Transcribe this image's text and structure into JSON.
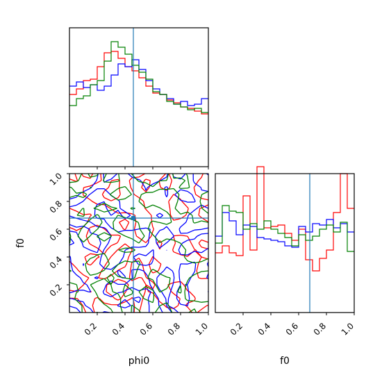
{
  "chart_data": [
    {
      "type": "histogram",
      "panel": "phi0 marginal",
      "x_range": [
        0,
        1
      ],
      "truth": 0.46,
      "bin_edges": [
        0,
        0.05,
        0.1,
        0.15,
        0.2,
        0.25,
        0.3,
        0.35,
        0.4,
        0.45,
        0.5,
        0.55,
        0.6,
        0.65,
        0.7,
        0.75,
        0.8,
        0.85,
        0.9,
        0.95,
        1.0
      ],
      "series": [
        {
          "color": "#ff0000",
          "values": [
            0.52,
            0.56,
            0.62,
            0.63,
            0.72,
            0.82,
            0.83,
            0.78,
            0.72,
            0.69,
            0.64,
            0.58,
            0.53,
            0.52,
            0.48,
            0.46,
            0.43,
            0.42,
            0.4,
            0.38
          ]
        },
        {
          "color": "#0000ff",
          "values": [
            0.58,
            0.61,
            0.57,
            0.59,
            0.55,
            0.58,
            0.66,
            0.74,
            0.72,
            0.77,
            0.7,
            0.62,
            0.56,
            0.52,
            0.49,
            0.45,
            0.47,
            0.44,
            0.45,
            0.49
          ]
        },
        {
          "color": "#008000",
          "values": [
            0.44,
            0.49,
            0.51,
            0.59,
            0.62,
            0.76,
            0.9,
            0.86,
            0.81,
            0.73,
            0.68,
            0.63,
            0.54,
            0.52,
            0.47,
            0.45,
            0.43,
            0.41,
            0.42,
            0.39
          ]
        }
      ]
    },
    {
      "type": "contour",
      "panel": "phi0 vs f0",
      "xlabel": "phi0",
      "ylabel": "f0",
      "x_range": [
        0,
        1
      ],
      "y_range": [
        0,
        1
      ],
      "truth": [
        0.46,
        0.68
      ],
      "xticks": [
        "0.2",
        "0.4",
        "0.6",
        "0.8",
        "1.0"
      ],
      "yticks": [
        "0.2",
        "0.4",
        "0.6",
        "0.8",
        "1.0"
      ],
      "series_colors": [
        "#ff0000",
        "#0000ff",
        "#008000"
      ]
    },
    {
      "type": "histogram",
      "panel": "f0 marginal",
      "xlabel": "f0",
      "x_range": [
        0,
        1
      ],
      "truth": 0.68,
      "xticks": [
        "0.2",
        "0.4",
        "0.6",
        "0.8",
        "1.0"
      ],
      "bin_edges": [
        0,
        0.05,
        0.1,
        0.15,
        0.2,
        0.25,
        0.3,
        0.35,
        0.4,
        0.45,
        0.5,
        0.55,
        0.6,
        0.65,
        0.7,
        0.75,
        0.8,
        0.85,
        0.9,
        0.95,
        1.0
      ],
      "series": [
        {
          "color": "#ff0000",
          "values": [
            0.43,
            0.48,
            0.43,
            0.41,
            0.84,
            0.45,
            1.05,
            0.61,
            0.62,
            0.63,
            0.57,
            0.52,
            0.6,
            0.38,
            0.3,
            0.39,
            0.45,
            0.72,
            1.0,
            0.75
          ]
        },
        {
          "color": "#0000ff",
          "values": [
            0.55,
            0.72,
            0.66,
            0.56,
            0.63,
            0.62,
            0.54,
            0.53,
            0.52,
            0.51,
            0.48,
            0.47,
            0.62,
            0.58,
            0.64,
            0.63,
            0.67,
            0.61,
            0.64,
            0.58
          ]
        },
        {
          "color": "#008000",
          "values": [
            0.5,
            0.77,
            0.73,
            0.72,
            0.6,
            0.64,
            0.6,
            0.66,
            0.6,
            0.57,
            0.54,
            0.48,
            0.56,
            0.52,
            0.55,
            0.6,
            0.63,
            0.58,
            0.65,
            0.44
          ]
        }
      ]
    }
  ]
}
